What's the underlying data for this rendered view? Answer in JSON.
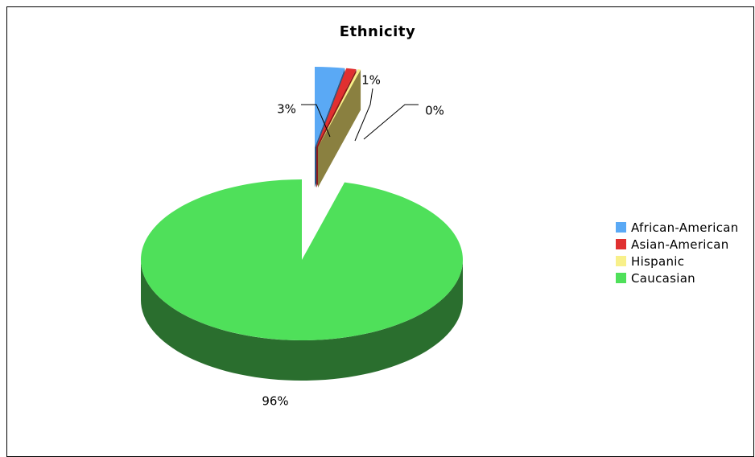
{
  "chart_data": {
    "type": "pie",
    "title": "Ethnicity",
    "three_d": true,
    "exploded": true,
    "legend_position": "right",
    "categories": [
      "African-American",
      "Asian-American",
      "Hispanic",
      "Caucasian"
    ],
    "values": [
      3,
      1,
      0,
      96
    ],
    "data_labels": [
      "3%",
      "1%",
      "0%",
      "96%"
    ],
    "colors": [
      "#5aa9f5",
      "#e03030",
      "#f8f08a",
      "#4fe05a"
    ],
    "side_colors": [
      "#2b5a8a",
      "#8a1a1a",
      "#8a8040",
      "#2a6e2e"
    ]
  }
}
